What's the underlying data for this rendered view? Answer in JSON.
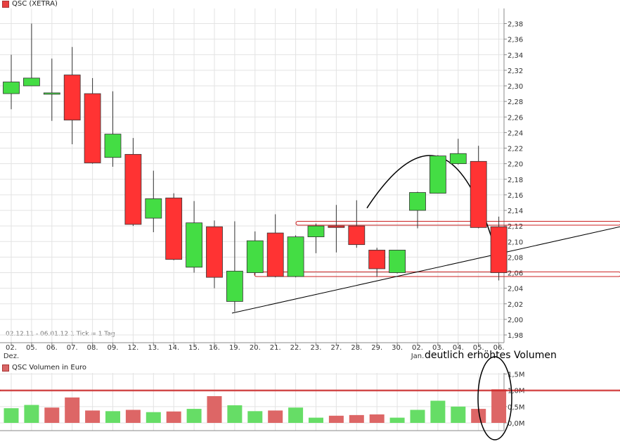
{
  "chart_data": [
    {
      "type": "candlestick",
      "title": "QSC (XETRA)",
      "legend_color": "#e84040",
      "up_color": "#44dd44",
      "down_color": "#ff3333",
      "info_text": "02.12.11 - 06.01.12   1 Tick = 1 Tag",
      "x_labels": [
        "02.",
        "05.",
        "06.",
        "07.",
        "08.",
        "09.",
        "12.",
        "13.",
        "14.",
        "15.",
        "16.",
        "19.",
        "20.",
        "21.",
        "22.",
        "23.",
        "27.",
        "28.",
        "29.",
        "30.",
        "02.",
        "03.",
        "04.",
        "05.",
        "06."
      ],
      "x_sublabels": [
        {
          "index": 0,
          "text": "Dez."
        },
        {
          "index": 20,
          "text": "Jan."
        }
      ],
      "ylim": [
        1.98,
        2.38
      ],
      "yticks": [
        "2,38",
        "2,36",
        "2,34",
        "2,32",
        "2,30",
        "2,28",
        "2,26",
        "2,24",
        "2,22",
        "2,20",
        "2,18",
        "2,16",
        "2,14",
        "2,12",
        "2,10",
        "2,08",
        "2,06",
        "2,04",
        "2,02",
        "2,00",
        "1,98"
      ],
      "series": [
        {
          "values": [
            {
              "open": 2.29,
              "high": 2.34,
              "low": 2.27,
              "close": 2.305
            },
            {
              "open": 2.3,
              "high": 2.38,
              "low": 2.3,
              "close": 2.31
            },
            {
              "open": 2.29,
              "high": 2.335,
              "low": 2.255,
              "close": 2.291
            },
            {
              "open": 2.314,
              "high": 2.35,
              "low": 2.225,
              "close": 2.256
            },
            {
              "open": 2.29,
              "high": 2.31,
              "low": 2.2,
              "close": 2.201
            },
            {
              "open": 2.208,
              "high": 2.293,
              "low": 2.196,
              "close": 2.238
            },
            {
              "open": 2.212,
              "high": 2.233,
              "low": 2.12,
              "close": 2.122
            },
            {
              "open": 2.13,
              "high": 2.191,
              "low": 2.112,
              "close": 2.155
            },
            {
              "open": 2.156,
              "high": 2.162,
              "low": 2.076,
              "close": 2.077
            },
            {
              "open": 2.067,
              "high": 2.152,
              "low": 2.06,
              "close": 2.124
            },
            {
              "open": 2.119,
              "high": 2.127,
              "low": 2.04,
              "close": 2.054
            },
            {
              "open": 2.023,
              "high": 2.126,
              "low": 2.01,
              "close": 2.062
            },
            {
              "open": 2.06,
              "high": 2.113,
              "low": 2.057,
              "close": 2.101
            },
            {
              "open": 2.111,
              "high": 2.135,
              "low": 2.054,
              "close": 2.055
            },
            {
              "open": 2.055,
              "high": 2.108,
              "low": 2.054,
              "close": 2.106
            },
            {
              "open": 2.106,
              "high": 2.123,
              "low": 2.085,
              "close": 2.12
            },
            {
              "open": 2.12,
              "high": 2.147,
              "low": 2.086,
              "close": 2.118
            },
            {
              "open": 2.12,
              "high": 2.153,
              "low": 2.092,
              "close": 2.096
            },
            {
              "open": 2.089,
              "high": 2.092,
              "low": 2.055,
              "close": 2.065
            },
            {
              "open": 2.06,
              "high": 2.089,
              "low": 2.059,
              "close": 2.089
            },
            {
              "open": 2.14,
              "high": 2.164,
              "low": 2.117,
              "close": 2.163
            },
            {
              "open": 2.162,
              "high": 2.211,
              "low": 2.162,
              "close": 2.21
            },
            {
              "open": 2.2,
              "high": 2.232,
              "low": 2.199,
              "close": 2.213
            },
            {
              "open": 2.203,
              "high": 2.223,
              "low": 2.117,
              "close": 2.118
            },
            {
              "open": 2.119,
              "high": 2.132,
              "low": 2.05,
              "close": 2.06
            }
          ]
        }
      ]
    },
    {
      "type": "bar",
      "title": "QSC Volumen in Euro",
      "legend_color": "#d86666",
      "up_color": "#66dd66",
      "down_color": "#dd6666",
      "ylim": [
        0,
        1.5
      ],
      "yticks": [
        "1,5M",
        "1,0M",
        "0,5M",
        "0,0M"
      ],
      "annotation": "deutlich erhöhtes Volumen",
      "series": [
        {
          "values": [
            0.45,
            0.55,
            0.47,
            0.78,
            0.38,
            0.36,
            0.4,
            0.33,
            0.35,
            0.43,
            0.82,
            0.54,
            0.36,
            0.38,
            0.47,
            0.16,
            0.22,
            0.24,
            0.26,
            0.16,
            0.4,
            0.68,
            0.5,
            0.43,
            1.03
          ],
          "up": [
            true,
            true,
            false,
            false,
            false,
            true,
            false,
            true,
            false,
            true,
            false,
            true,
            true,
            false,
            true,
            true,
            false,
            false,
            false,
            true,
            true,
            true,
            true,
            false,
            false
          ]
        }
      ]
    }
  ]
}
